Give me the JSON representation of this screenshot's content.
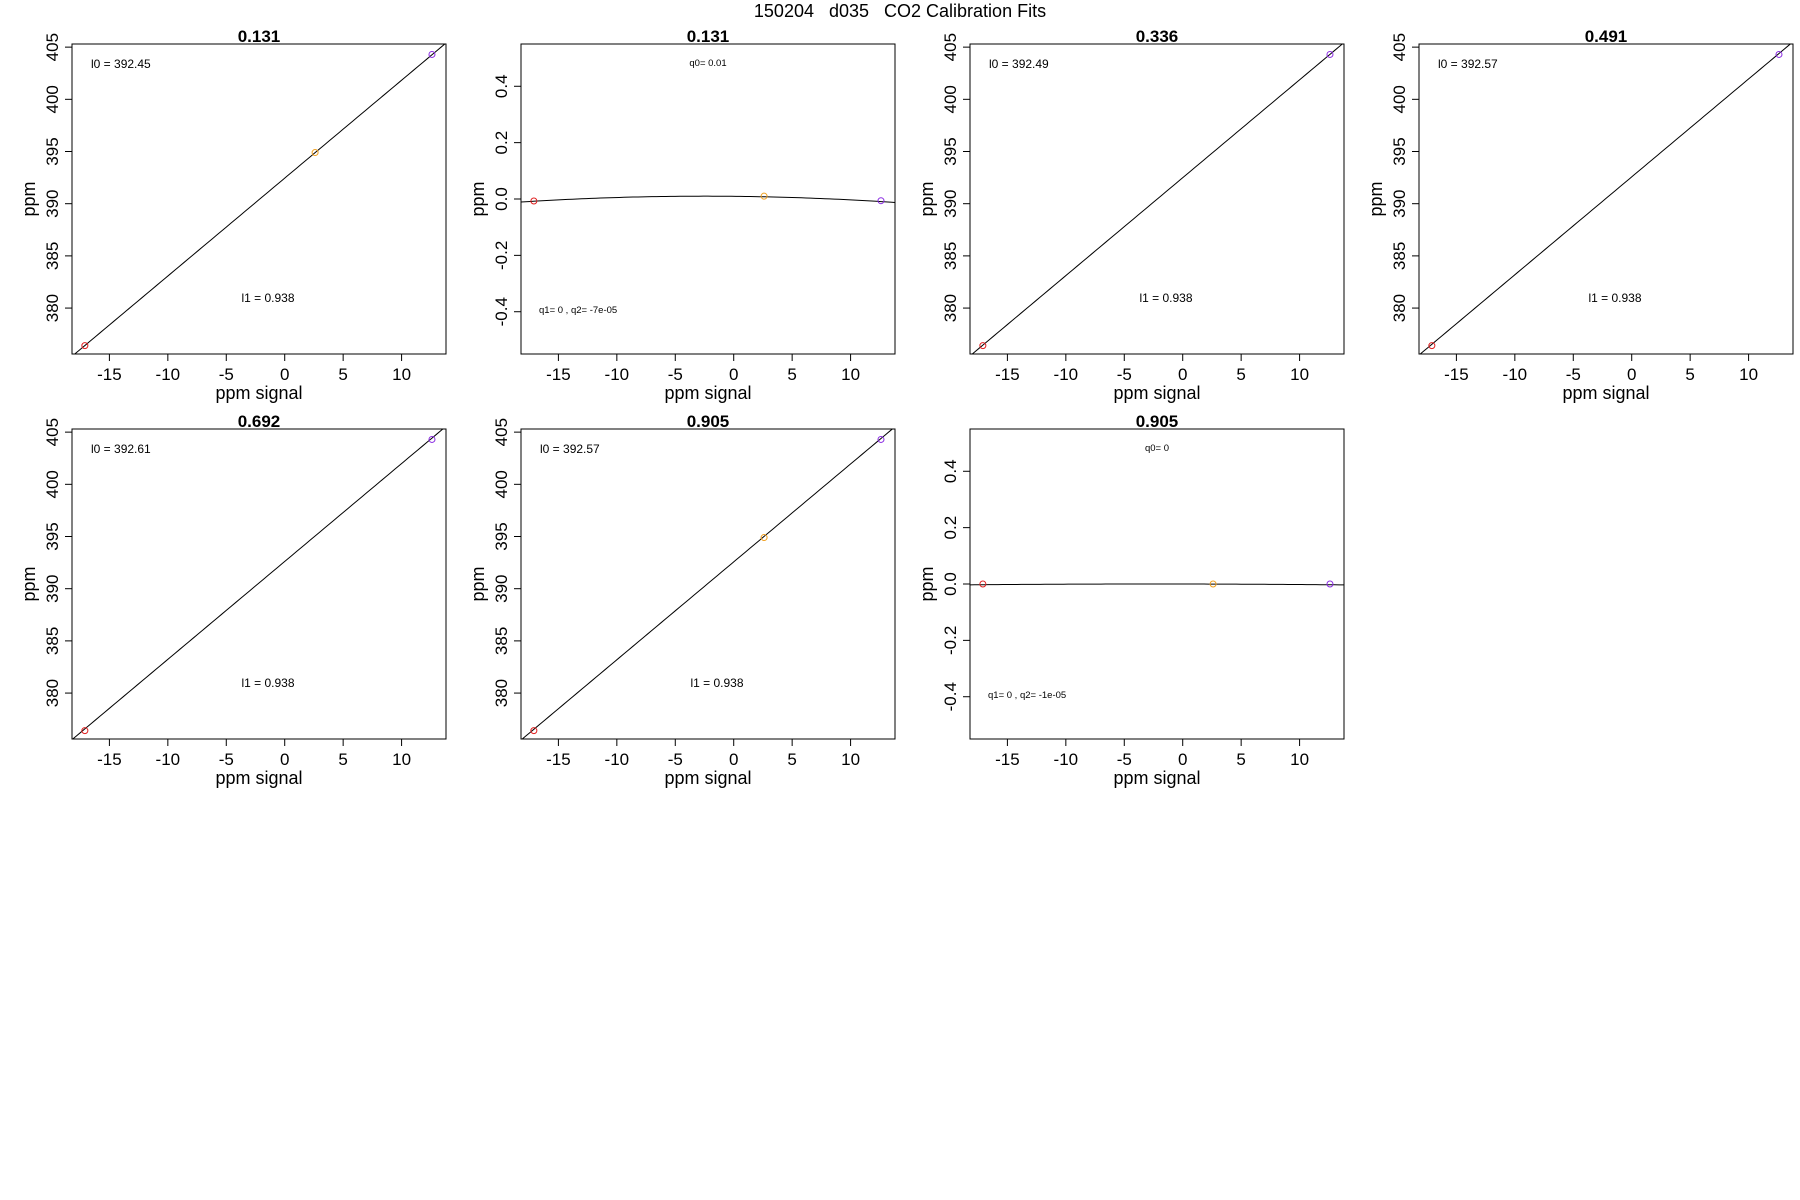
{
  "figure_title": "150204   d035   CO2 Calibration Fits",
  "colors": {
    "point_low": "#e02020",
    "point_mid": "#f0a020",
    "point_high": "#8a2be2",
    "line": "#000000"
  },
  "chart_data": [
    {
      "type": "scatter",
      "panel_title": "0.131",
      "xlabel": "ppm signal",
      "ylabel": "ppm",
      "xlim": [
        -18.2,
        13.8
      ],
      "ylim": [
        375.6,
        405.3
      ],
      "xticks": [
        "-15",
        "-10",
        "-5",
        "0",
        "5",
        "10"
      ],
      "xtick_values": [
        -15,
        -10,
        -5,
        0,
        5,
        10
      ],
      "yticks": [
        "380",
        "385",
        "390",
        "395",
        "400",
        "405"
      ],
      "ytick_values": [
        380,
        385,
        390,
        395,
        400,
        405
      ],
      "annotations": [
        "l0 =  392.45",
        "l1 =  0.938"
      ],
      "fit": {
        "kind": "linear",
        "intercept": 392.45,
        "slope": 0.938
      },
      "points": [
        {
          "x": -17.1,
          "y": 376.4,
          "color": "point_low"
        },
        {
          "x": 2.6,
          "y": 394.9,
          "color": "point_mid"
        },
        {
          "x": 12.6,
          "y": 404.3,
          "color": "point_high"
        }
      ]
    },
    {
      "type": "scatter",
      "panel_title": "0.131",
      "xlabel": "ppm signal",
      "ylabel": "ppm",
      "xlim": [
        -18.2,
        13.8
      ],
      "ylim": [
        -0.55,
        0.55
      ],
      "xticks": [
        "-15",
        "-10",
        "-5",
        "0",
        "5",
        "10"
      ],
      "xtick_values": [
        -15,
        -10,
        -5,
        0,
        5,
        10
      ],
      "yticks": [
        "-0.4",
        "-0.2",
        "0.0",
        "0.2",
        "0.4"
      ],
      "ytick_values": [
        -0.4,
        -0.2,
        0.0,
        0.2,
        0.4
      ],
      "annotations": [
        "q0= 0.01",
        "q1= 0 , q2= -7e-05"
      ],
      "fit": {
        "kind": "quadratic",
        "q0": 0.01,
        "q1": 0,
        "q2": -7e-05
      },
      "points": [
        {
          "x": -17.1,
          "y": -0.007,
          "color": "point_low"
        },
        {
          "x": 2.6,
          "y": 0.01,
          "color": "point_mid"
        },
        {
          "x": 12.6,
          "y": -0.006,
          "color": "point_high"
        }
      ]
    },
    {
      "type": "scatter",
      "panel_title": "0.336",
      "xlabel": "ppm signal",
      "ylabel": "ppm",
      "xlim": [
        -18.2,
        13.8
      ],
      "ylim": [
        375.6,
        405.3
      ],
      "xticks": [
        "-15",
        "-10",
        "-5",
        "0",
        "5",
        "10"
      ],
      "xtick_values": [
        -15,
        -10,
        -5,
        0,
        5,
        10
      ],
      "yticks": [
        "380",
        "385",
        "390",
        "395",
        "400",
        "405"
      ],
      "ytick_values": [
        380,
        385,
        390,
        395,
        400,
        405
      ],
      "annotations": [
        "l0 =  392.49",
        "l1 =  0.938"
      ],
      "fit": {
        "kind": "linear",
        "intercept": 392.49,
        "slope": 0.938
      },
      "points": [
        {
          "x": -17.1,
          "y": 376.4,
          "color": "point_low"
        },
        {
          "x": 12.6,
          "y": 404.3,
          "color": "point_high"
        }
      ]
    },
    {
      "type": "scatter",
      "panel_title": "0.491",
      "xlabel": "ppm signal",
      "ylabel": "ppm",
      "xlim": [
        -18.2,
        13.8
      ],
      "ylim": [
        375.6,
        405.3
      ],
      "xticks": [
        "-15",
        "-10",
        "-5",
        "0",
        "5",
        "10"
      ],
      "xtick_values": [
        -15,
        -10,
        -5,
        0,
        5,
        10
      ],
      "yticks": [
        "380",
        "385",
        "390",
        "395",
        "400",
        "405"
      ],
      "ytick_values": [
        380,
        385,
        390,
        395,
        400,
        405
      ],
      "annotations": [
        "l0 =  392.57",
        "l1 =  0.938"
      ],
      "fit": {
        "kind": "linear",
        "intercept": 392.57,
        "slope": 0.938
      },
      "points": [
        {
          "x": -17.1,
          "y": 376.4,
          "color": "point_low"
        },
        {
          "x": 12.6,
          "y": 404.3,
          "color": "point_high"
        }
      ]
    },
    {
      "type": "scatter",
      "panel_title": "0.692",
      "xlabel": "ppm signal",
      "ylabel": "ppm",
      "xlim": [
        -18.2,
        13.8
      ],
      "ylim": [
        375.6,
        405.3
      ],
      "xticks": [
        "-15",
        "-10",
        "-5",
        "0",
        "5",
        "10"
      ],
      "xtick_values": [
        -15,
        -10,
        -5,
        0,
        5,
        10
      ],
      "yticks": [
        "380",
        "385",
        "390",
        "395",
        "400",
        "405"
      ],
      "ytick_values": [
        380,
        385,
        390,
        395,
        400,
        405
      ],
      "annotations": [
        "l0 =  392.61",
        "l1 =  0.938"
      ],
      "fit": {
        "kind": "linear",
        "intercept": 392.61,
        "slope": 0.938
      },
      "points": [
        {
          "x": -17.1,
          "y": 376.4,
          "color": "point_low"
        },
        {
          "x": 12.6,
          "y": 404.3,
          "color": "point_high"
        }
      ]
    },
    {
      "type": "scatter",
      "panel_title": "0.905",
      "xlabel": "ppm signal",
      "ylabel": "ppm",
      "xlim": [
        -18.2,
        13.8
      ],
      "ylim": [
        375.6,
        405.3
      ],
      "xticks": [
        "-15",
        "-10",
        "-5",
        "0",
        "5",
        "10"
      ],
      "xtick_values": [
        -15,
        -10,
        -5,
        0,
        5,
        10
      ],
      "yticks": [
        "380",
        "385",
        "390",
        "395",
        "400",
        "405"
      ],
      "ytick_values": [
        380,
        385,
        390,
        395,
        400,
        405
      ],
      "annotations": [
        "l0 =  392.57",
        "l1 =  0.938"
      ],
      "fit": {
        "kind": "linear",
        "intercept": 392.57,
        "slope": 0.938
      },
      "points": [
        {
          "x": -17.1,
          "y": 376.4,
          "color": "point_low"
        },
        {
          "x": 2.6,
          "y": 394.9,
          "color": "point_mid"
        },
        {
          "x": 12.6,
          "y": 404.3,
          "color": "point_high"
        }
      ]
    },
    {
      "type": "scatter",
      "panel_title": "0.905",
      "xlabel": "ppm signal",
      "ylabel": "ppm",
      "xlim": [
        -18.2,
        13.8
      ],
      "ylim": [
        -0.55,
        0.55
      ],
      "xticks": [
        "-15",
        "-10",
        "-5",
        "0",
        "5",
        "10"
      ],
      "xtick_values": [
        -15,
        -10,
        -5,
        0,
        5,
        10
      ],
      "yticks": [
        "-0.4",
        "-0.2",
        "0.0",
        "0.2",
        "0.4"
      ],
      "ytick_values": [
        -0.4,
        -0.2,
        0.0,
        0.2,
        0.4
      ],
      "annotations": [
        "q0= 0",
        "q1= 0 , q2= -1e-05"
      ],
      "fit": {
        "kind": "quadratic",
        "q0": 0,
        "q1": 0,
        "q2": -1e-05
      },
      "points": [
        {
          "x": -17.1,
          "y": 0.0,
          "color": "point_low"
        },
        {
          "x": 2.6,
          "y": 0.0,
          "color": "point_mid"
        },
        {
          "x": 12.6,
          "y": 0.0,
          "color": "point_high"
        }
      ]
    }
  ]
}
